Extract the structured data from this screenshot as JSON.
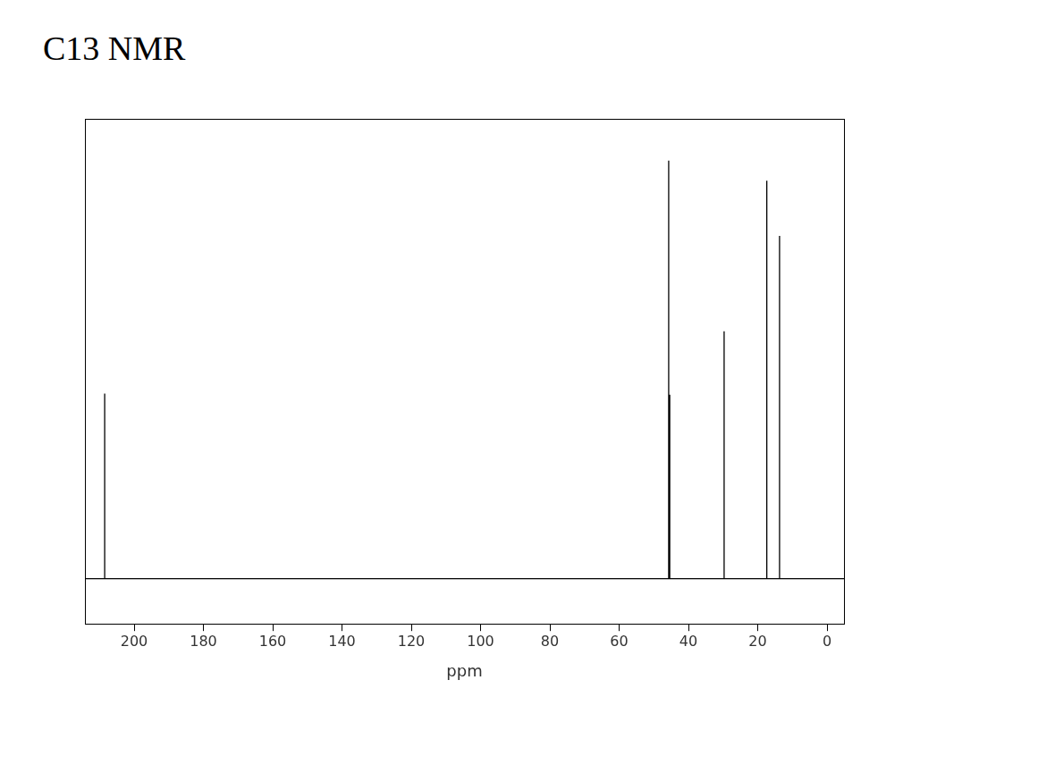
{
  "chart_data": {
    "type": "line",
    "title": "C13 NMR",
    "x_label": "ppm",
    "x": [
      208.5,
      45.7,
      45.4,
      29.7,
      17.5,
      17.3,
      13.7
    ],
    "values": [
      44.3,
      100,
      44,
      59.2,
      95.2,
      20,
      82
    ],
    "color": "#000000",
    "xlim": [
      214.2,
      -4.9
    ],
    "xticks": [
      200,
      180,
      160,
      140,
      120,
      100,
      80,
      60,
      40,
      20,
      0
    ],
    "ylim": [
      -10.8,
      110
    ],
    "yticks": [],
    "grid": false,
    "tick_labels": "x"
  }
}
